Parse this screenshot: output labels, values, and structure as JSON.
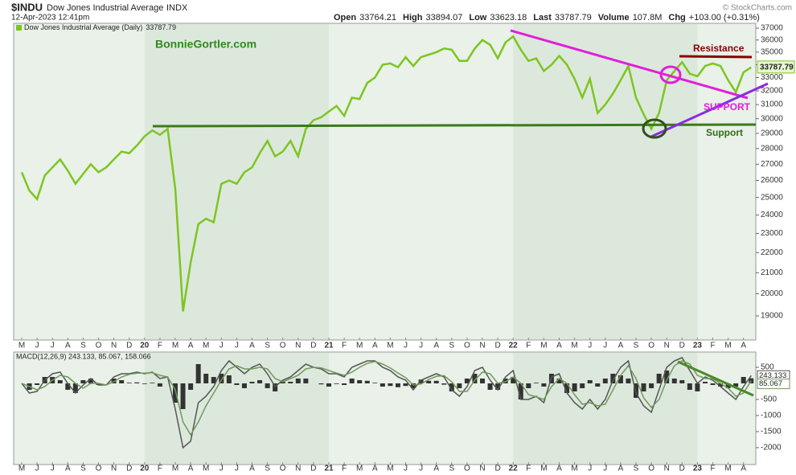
{
  "header": {
    "symbol": "$INDU",
    "name": "Dow Jones Industrial Average",
    "exchange": "INDX",
    "timestamp": "12-Apr-2023 12:41pm",
    "credit": "© StockCharts.com",
    "quote": [
      {
        "label": "Open",
        "value": "33764.21"
      },
      {
        "label": "High",
        "value": "33894.07"
      },
      {
        "label": "Low",
        "value": "33623.18"
      },
      {
        "label": "Last",
        "value": "33787.79"
      },
      {
        "label": "Volume",
        "value": "107.8M"
      },
      {
        "label": "Chg",
        "value": "+103.00 (+0.31%)"
      }
    ]
  },
  "chart_data": [
    {
      "type": "line",
      "log_scale": true,
      "grid": false,
      "background": "#e9f1e9",
      "band_color": "#dde8dd",
      "categories": [
        "M",
        null,
        "J",
        null,
        "J",
        null,
        "A",
        null,
        "S",
        null,
        "O",
        null,
        "N",
        null,
        "D",
        null,
        "20",
        null,
        "F",
        null,
        "M",
        null,
        "A",
        null,
        "M",
        null,
        "J",
        null,
        "J",
        null,
        "A",
        null,
        "S",
        null,
        "O",
        null,
        "N",
        null,
        "D",
        null,
        "21",
        null,
        "F",
        null,
        "M",
        null,
        "A",
        null,
        "M",
        null,
        "J",
        null,
        "J",
        null,
        "A",
        null,
        "S",
        null,
        "O",
        null,
        "N",
        null,
        "D",
        null,
        "22",
        null,
        "F",
        null,
        "M",
        null,
        "A",
        null,
        "M",
        null,
        "J",
        null,
        "J",
        null,
        "A",
        null,
        "S",
        null,
        "O",
        null,
        "N",
        null,
        "D",
        null,
        "23",
        null,
        "F",
        null,
        "M",
        null,
        "A",
        null
      ],
      "series": [
        {
          "name": "Dow Jones Industrial Average (Daily)",
          "color": "#7cc61f",
          "values": [
            26500,
            25400,
            24900,
            26300,
            26800,
            27300,
            26600,
            25800,
            26400,
            27000,
            26500,
            26800,
            27300,
            27800,
            27700,
            28200,
            28800,
            29200,
            28900,
            29300,
            25500,
            19200,
            21500,
            23500,
            23800,
            23600,
            25800,
            26000,
            25800,
            26500,
            26800,
            27700,
            28500,
            27500,
            27800,
            28500,
            27500,
            29300,
            29900,
            30100,
            30500,
            30900,
            30200,
            31500,
            31400,
            32600,
            33000,
            34000,
            34100,
            33800,
            34600,
            33900,
            34600,
            34800,
            35000,
            35300,
            35200,
            34300,
            34300,
            35300,
            36000,
            35600,
            34500,
            35800,
            36300,
            35200,
            34300,
            34500,
            33500,
            34000,
            34700,
            34000,
            32900,
            31500,
            32900,
            30400,
            31000,
            31800,
            32800,
            33900,
            31500,
            30300,
            29300,
            30400,
            32800,
            33500,
            34200,
            33300,
            33100,
            33900,
            34100,
            33900,
            32800,
            31900,
            33400,
            33787.79
          ]
        }
      ],
      "ylim": [
        17970,
        37420
      ],
      "yticks": [
        19000,
        20000,
        21000,
        22000,
        23000,
        24000,
        25000,
        26000,
        27000,
        28000,
        29000,
        30000,
        31000,
        32000,
        33000,
        34000,
        35000,
        36000,
        37000
      ],
      "annotations": [
        {
          "text": "BonnieGortler.com",
          "color": "#2f8a1c"
        },
        {
          "text": "Resistance",
          "color": "#8b0000"
        },
        {
          "text": "SUPPORT",
          "color": "#e020d8"
        },
        {
          "text": "Support",
          "color": "#2f6e14"
        }
      ]
    },
    {
      "type": "macd",
      "title": "MACD(12,26,9) 243.133, 85.067, 158.066",
      "grid": false,
      "background": "#e9f1e9",
      "band_color": "#dde8dd",
      "categories": [
        "M",
        null,
        "J",
        null,
        "J",
        null,
        "A",
        null,
        "S",
        null,
        "O",
        null,
        "N",
        null,
        "D",
        null,
        "20",
        null,
        "F",
        null,
        "M",
        null,
        "A",
        null,
        "M",
        null,
        "J",
        null,
        "J",
        null,
        "A",
        null,
        "S",
        null,
        "O",
        null,
        "N",
        null,
        "D",
        null,
        "21",
        null,
        "F",
        null,
        "M",
        null,
        "A",
        null,
        "M",
        null,
        "J",
        null,
        "J",
        null,
        "A",
        null,
        "S",
        null,
        "O",
        null,
        "N",
        null,
        "D",
        null,
        "22",
        null,
        "F",
        null,
        "M",
        null,
        "A",
        null,
        "M",
        null,
        "J",
        null,
        "J",
        null,
        "A",
        null,
        "S",
        null,
        "O",
        null,
        "N",
        null,
        "D",
        null,
        "23",
        null,
        "F",
        null,
        "M",
        null,
        "A",
        null
      ],
      "series": [
        {
          "style": "bar",
          "color": "#333333",
          "values": [
            0,
            -200,
            -50,
            200,
            200,
            100,
            -200,
            -300,
            100,
            150,
            -50,
            0,
            150,
            100,
            20,
            30,
            -20,
            20,
            -100,
            0,
            -600,
            -800,
            -200,
            600,
            300,
            200,
            300,
            250,
            -50,
            -150,
            50,
            100,
            -150,
            -250,
            50,
            50,
            150,
            150,
            0,
            -30,
            -100,
            -20,
            -50,
            150,
            100,
            80,
            20,
            -100,
            -80,
            -120,
            -80,
            -150,
            120,
            80,
            80,
            -40,
            -250,
            -150,
            150,
            300,
            150,
            -200,
            -200,
            150,
            200,
            -500,
            -150,
            20,
            -100,
            300,
            150,
            -300,
            -250,
            -150,
            100,
            -100,
            150,
            300,
            250,
            150,
            -450,
            -250,
            -150,
            300,
            400,
            150,
            100,
            -200,
            -250,
            50,
            -50,
            -100,
            -150,
            -100,
            200,
            158.066
          ]
        },
        {
          "style": "line",
          "color": "#555555",
          "values": [
            0,
            -300,
            -250,
            100,
            300,
            350,
            0,
            -300,
            -50,
            150,
            -50,
            -50,
            200,
            300,
            300,
            350,
            300,
            350,
            150,
            200,
            -800,
            -2000,
            -1800,
            -600,
            -400,
            -100,
            400,
            700,
            500,
            300,
            500,
            600,
            300,
            -100,
            100,
            200,
            400,
            600,
            500,
            450,
            300,
            300,
            200,
            500,
            600,
            700,
            700,
            500,
            400,
            200,
            100,
            -200,
            100,
            200,
            300,
            200,
            -200,
            -400,
            -100,
            400,
            500,
            100,
            -200,
            200,
            400,
            -500,
            -500,
            -400,
            -600,
            200,
            300,
            -300,
            -600,
            -800,
            -500,
            -800,
            -500,
            100,
            500,
            700,
            -300,
            -700,
            -900,
            -200,
            500,
            700,
            800,
            400,
            0,
            200,
            100,
            -100,
            -300,
            -500,
            -100,
            243.133
          ]
        },
        {
          "style": "line",
          "color": "#6f9a5c",
          "values": [
            0,
            -100,
            -200,
            -100,
            100,
            250,
            200,
            0,
            -150,
            0,
            0,
            -50,
            50,
            200,
            280,
            320,
            320,
            330,
            250,
            200,
            -200,
            -1200,
            -1600,
            -1200,
            -700,
            -300,
            100,
            450,
            550,
            450,
            450,
            500,
            450,
            150,
            50,
            150,
            250,
            450,
            500,
            480,
            400,
            320,
            250,
            350,
            500,
            620,
            680,
            600,
            480,
            320,
            180,
            -50,
            -20,
            120,
            220,
            240,
            50,
            -250,
            -250,
            100,
            350,
            300,
            0,
            50,
            200,
            0,
            -350,
            -420,
            -500,
            -100,
            150,
            0,
            -350,
            -650,
            -600,
            -700,
            -650,
            -200,
            250,
            550,
            150,
            -450,
            -750,
            -500,
            100,
            550,
            700,
            600,
            250,
            150,
            150,
            0,
            -150,
            -400,
            -300,
            85.067
          ]
        }
      ],
      "ylim": [
        -2525,
        975
      ],
      "yticks": [
        -2000,
        -1500,
        -1000,
        -500,
        500
      ]
    }
  ]
}
